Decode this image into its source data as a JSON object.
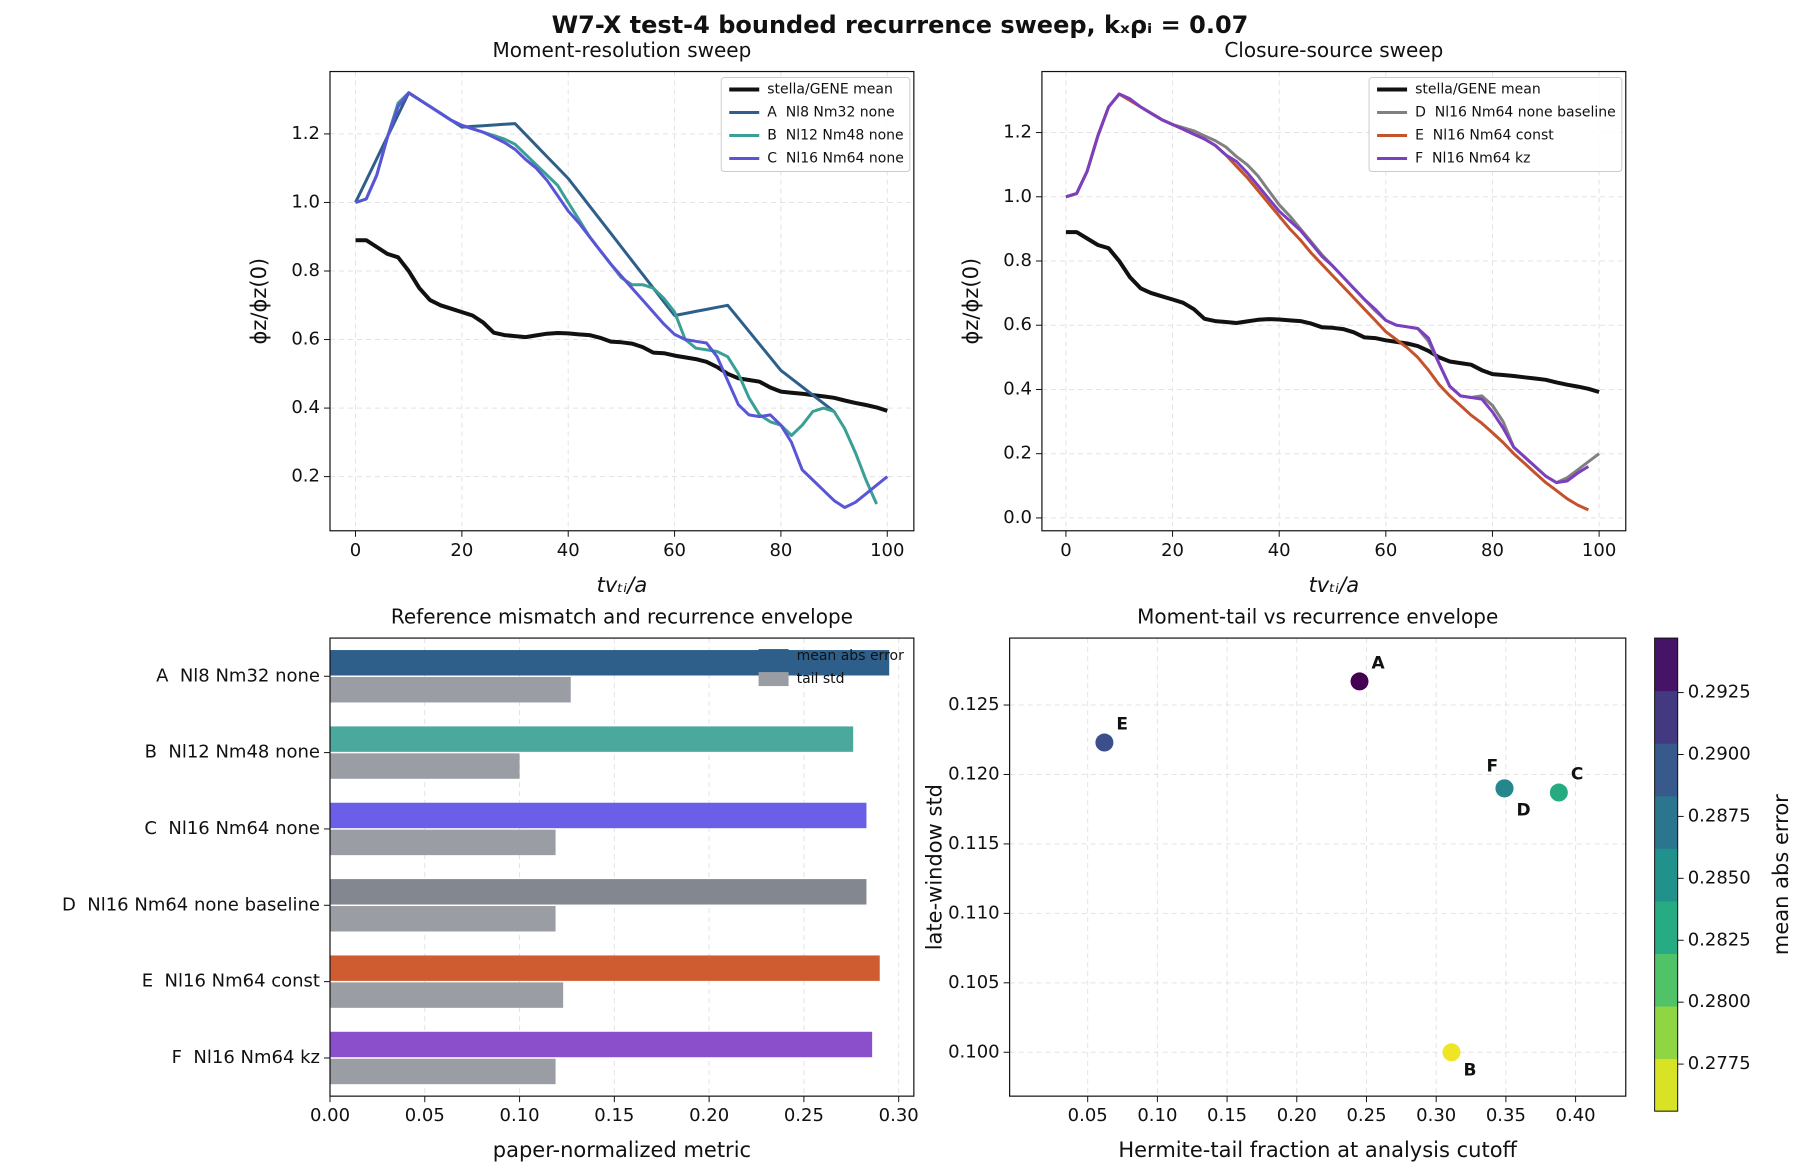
{
  "title": "W7-X test-4 bounded recurrence sweep, kₓρᵢ = 0.07",
  "chart_data": [
    {
      "type": "line",
      "title": "Moment-resolution sweep",
      "xlabel": "tvₜᵢ/a",
      "ylabel": "ϕz/ϕz(0)",
      "x": [
        0,
        2,
        4,
        6,
        8,
        10,
        12,
        14,
        16,
        18,
        20,
        22,
        24,
        26,
        28,
        30,
        32,
        34,
        36,
        38,
        40,
        42,
        44,
        46,
        48,
        50,
        52,
        54,
        56,
        58,
        60,
        62,
        64,
        66,
        68,
        70,
        72,
        74,
        76,
        78,
        80,
        82,
        84,
        86,
        88,
        90,
        92,
        94,
        96,
        98,
        100
      ],
      "series": [
        {
          "name": "stella/GENE mean",
          "color": "#111111",
          "values": [
            0.89,
            0.89,
            0.87,
            0.85,
            0.84,
            0.8,
            0.75,
            0.715,
            0.7,
            0.69,
            0.68,
            0.67,
            0.65,
            0.62,
            0.613,
            0.61,
            0.607,
            0.612,
            0.617,
            0.619,
            0.618,
            0.615,
            0.613,
            0.605,
            0.594,
            0.592,
            0.588,
            0.578,
            0.562,
            0.56,
            0.553,
            0.548,
            0.543,
            0.535,
            0.52,
            0.5,
            0.487,
            0.482,
            0.477,
            0.46,
            0.448,
            0.445,
            0.442,
            0.438,
            0.434,
            0.43,
            0.422,
            0.415,
            0.409,
            0.402,
            0.392
          ]
        },
        {
          "name": "A  Nl8 Nm32 none",
          "color": "#2d5f8a",
          "values": [
            1.0,
            1.064,
            1.128,
            1.192,
            1.256,
            1.32,
            1.3,
            1.28,
            1.26,
            1.24,
            1.22,
            1.222,
            1.224,
            1.226,
            1.228,
            1.23,
            1.198,
            1.166,
            1.134,
            1.102,
            1.07,
            1.03,
            0.99,
            0.95,
            0.91,
            0.87,
            0.83,
            0.79,
            0.75,
            0.71,
            0.67,
            0.676,
            0.682,
            0.688,
            0.694,
            0.7,
            0.662,
            0.624,
            0.586,
            0.548,
            0.51,
            0.486,
            0.462,
            0.438,
            0.414,
            0.39,
            null,
            null,
            null,
            null,
            null
          ]
        },
        {
          "name": "B  Nl12 Nm48 none",
          "color": "#3a9f94",
          "values": [
            1.0,
            1.01,
            1.08,
            1.19,
            1.29,
            1.32,
            1.3,
            1.28,
            1.26,
            1.24,
            1.225,
            1.215,
            1.205,
            1.195,
            1.185,
            1.17,
            1.14,
            1.11,
            1.08,
            1.05,
            1.0,
            0.95,
            0.9,
            0.86,
            0.82,
            0.78,
            0.76,
            0.76,
            0.75,
            0.72,
            0.68,
            0.6,
            0.575,
            0.57,
            0.565,
            0.55,
            0.5,
            0.43,
            0.38,
            0.36,
            0.35,
            0.32,
            0.35,
            0.39,
            0.4,
            0.39,
            0.34,
            0.27,
            0.19,
            0.12,
            null
          ]
        },
        {
          "name": "C  Nl16 Nm64 none",
          "color": "#5a55d6",
          "values": [
            1.0,
            1.01,
            1.08,
            1.19,
            1.28,
            1.32,
            1.3,
            1.28,
            1.26,
            1.24,
            1.225,
            1.215,
            1.205,
            1.19,
            1.175,
            1.155,
            1.125,
            1.1,
            1.065,
            1.02,
            0.975,
            0.94,
            0.9,
            0.86,
            0.82,
            0.785,
            0.75,
            0.715,
            0.68,
            0.645,
            0.615,
            0.6,
            0.595,
            0.59,
            0.55,
            0.48,
            0.41,
            0.38,
            0.375,
            0.38,
            0.35,
            0.3,
            0.22,
            0.19,
            0.16,
            0.13,
            0.11,
            0.125,
            0.15,
            0.175,
            0.2
          ]
        }
      ],
      "xlim": [
        -4.8,
        105
      ],
      "ylim": [
        0.042,
        1.382
      ],
      "xticks": [
        0,
        20,
        40,
        60,
        80,
        100
      ],
      "yticks": [
        0.2,
        0.4,
        0.6,
        0.8,
        {
          "value": 1,
          "label": "1.0"
        },
        1.2
      ],
      "grid": true,
      "legend": "upper right"
    },
    {
      "type": "line",
      "title": "Closure-source sweep",
      "xlabel": "tvₜᵢ/a",
      "ylabel": "ϕz/ϕz(0)",
      "x": [
        0,
        2,
        4,
        6,
        8,
        10,
        12,
        14,
        16,
        18,
        20,
        22,
        24,
        26,
        28,
        30,
        32,
        34,
        36,
        38,
        40,
        42,
        44,
        46,
        48,
        50,
        52,
        54,
        56,
        58,
        60,
        62,
        64,
        66,
        68,
        70,
        72,
        74,
        76,
        78,
        80,
        82,
        84,
        86,
        88,
        90,
        92,
        94,
        96,
        98,
        100
      ],
      "series": [
        {
          "name": "stella/GENE mean",
          "color": "#111111",
          "values": [
            0.89,
            0.89,
            0.87,
            0.85,
            0.84,
            0.8,
            0.75,
            0.715,
            0.7,
            0.69,
            0.68,
            0.67,
            0.65,
            0.62,
            0.613,
            0.61,
            0.607,
            0.612,
            0.617,
            0.619,
            0.618,
            0.615,
            0.613,
            0.605,
            0.594,
            0.592,
            0.588,
            0.578,
            0.562,
            0.56,
            0.553,
            0.548,
            0.543,
            0.535,
            0.52,
            0.5,
            0.487,
            0.482,
            0.477,
            0.46,
            0.448,
            0.445,
            0.442,
            0.438,
            0.434,
            0.43,
            0.422,
            0.415,
            0.409,
            0.402,
            0.392
          ]
        },
        {
          "name": "D  Nl16 Nm64 none baseline",
          "color": "#808080",
          "values": [
            1.0,
            1.01,
            1.08,
            1.19,
            1.28,
            1.32,
            1.3,
            1.28,
            1.26,
            1.24,
            1.225,
            1.215,
            1.205,
            1.19,
            1.175,
            1.155,
            1.125,
            1.1,
            1.065,
            1.02,
            0.975,
            0.94,
            0.9,
            0.86,
            0.82,
            0.785,
            0.75,
            0.715,
            0.68,
            0.645,
            0.615,
            0.6,
            0.595,
            0.59,
            0.55,
            0.48,
            0.41,
            0.38,
            0.375,
            0.38,
            0.35,
            0.3,
            0.22,
            0.19,
            0.16,
            0.13,
            0.11,
            0.125,
            0.15,
            0.175,
            0.2
          ]
        },
        {
          "name": "E  Nl16 Nm64 const",
          "color": "#c4522a",
          "values": [
            1.0,
            1.01,
            1.08,
            1.19,
            1.28,
            1.32,
            1.3,
            1.28,
            1.26,
            1.24,
            1.225,
            1.21,
            1.195,
            1.18,
            1.16,
            1.13,
            1.095,
            1.06,
            1.02,
            0.98,
            0.94,
            0.9,
            0.865,
            0.825,
            0.79,
            0.755,
            0.72,
            0.685,
            0.65,
            0.615,
            0.58,
            0.555,
            0.53,
            0.5,
            0.46,
            0.415,
            0.38,
            0.35,
            0.32,
            0.295,
            0.265,
            0.235,
            0.2,
            0.17,
            0.14,
            0.11,
            0.085,
            0.06,
            0.04,
            0.025,
            null
          ]
        },
        {
          "name": "F  Nl16 Nm64 kz",
          "color": "#7b3fbf",
          "values": [
            1.0,
            1.01,
            1.08,
            1.19,
            1.28,
            1.32,
            1.305,
            1.28,
            1.26,
            1.24,
            1.225,
            1.21,
            1.195,
            1.18,
            1.16,
            1.13,
            1.11,
            1.075,
            1.035,
            0.995,
            0.955,
            0.925,
            0.895,
            0.855,
            0.815,
            0.785,
            0.75,
            0.715,
            0.68,
            0.65,
            0.615,
            0.6,
            0.595,
            0.59,
            0.56,
            0.48,
            0.41,
            0.38,
            0.375,
            0.37,
            0.33,
            0.28,
            0.22,
            0.19,
            0.16,
            0.13,
            0.11,
            0.115,
            0.14,
            0.16,
            null
          ]
        }
      ],
      "xlim": [
        -4.5,
        105
      ],
      "ylim": [
        -0.04,
        1.39
      ],
      "xticks": [
        0,
        20,
        40,
        60,
        80,
        100
      ],
      "yticks": [
        {
          "value": 0,
          "label": "0.0"
        },
        0.2,
        0.4,
        0.6,
        0.8,
        {
          "value": 1,
          "label": "1.0"
        },
        1.2
      ],
      "grid": true,
      "legend": "upper right"
    },
    {
      "type": "bar",
      "orientation": "horizontal",
      "title": "Reference mismatch and recurrence envelope",
      "xlabel": "paper-normalized metric",
      "categories": [
        "A  Nl8 Nm32 none",
        "B  Nl12 Nm48 none",
        "C  Nl16 Nm64 none",
        "D  Nl16 Nm64 none baseline",
        "E  Nl16 Nm64 const",
        "F  Nl16 Nm64 kz"
      ],
      "series": [
        {
          "name": "mean abs error",
          "color": "#2d5f8a",
          "colors": [
            "#2d5f8a",
            "#4aa99c",
            "#6a5fe6",
            "#838890",
            "#cf5c30",
            "#8c4fcc"
          ],
          "values": [
            0.295,
            0.276,
            0.283,
            0.283,
            0.29,
            0.286
          ]
        },
        {
          "name": "tail std",
          "color": "#9a9da3",
          "values": [
            0.127,
            0.1,
            0.119,
            0.119,
            0.123,
            0.119
          ]
        }
      ],
      "xlim": [
        0,
        0.308
      ],
      "xticks": [
        {
          "value": 0,
          "label": "0.00"
        },
        0.05,
        {
          "value": 0.1,
          "label": "0.10"
        },
        0.15,
        {
          "value": 0.2,
          "label": "0.20"
        },
        0.25,
        {
          "value": 0.3,
          "label": "0.30"
        }
      ],
      "grid": true,
      "legend": "upper right"
    },
    {
      "type": "scatter",
      "title": "Moment-tail vs recurrence envelope",
      "xlabel": "Hermite-tail fraction at analysis cutoff",
      "ylabel": "late-window std",
      "labels": [
        "A",
        "B",
        "C",
        "D",
        "E",
        "F"
      ],
      "x": [
        0.245,
        0.311,
        0.388,
        0.349,
        0.062,
        0.349
      ],
      "y": [
        0.1267,
        0.1,
        0.1187,
        0.119,
        0.1223,
        0.119
      ],
      "c": [
        0.295,
        0.276,
        0.283,
        0.283,
        0.29,
        0.286
      ],
      "colormap": "viridis_r",
      "clim": [
        0.2756,
        0.2947
      ],
      "colorbar_label": "mean abs error",
      "cticks": [
        0.2775,
        {
          "value": 0.28,
          "label": "0.2800"
        },
        0.2825,
        {
          "value": 0.285,
          "label": "0.2850"
        },
        0.2875,
        {
          "value": 0.29,
          "label": "0.2900"
        },
        0.2925
      ],
      "xlim": [
        -0.006,
        0.436
      ],
      "ylim": [
        0.09684,
        0.12982
      ],
      "xticks": [
        0.05,
        {
          "value": 0.1,
          "label": "0.10"
        },
        0.15,
        {
          "value": 0.2,
          "label": "0.20"
        },
        0.25,
        {
          "value": 0.3,
          "label": "0.30"
        },
        0.35,
        {
          "value": 0.4,
          "label": "0.40"
        }
      ],
      "yticks": [
        {
          "value": 0.1,
          "label": "0.100"
        },
        0.105,
        {
          "value": 0.11,
          "label": "0.110"
        },
        0.115,
        {
          "value": 0.12,
          "label": "0.120"
        },
        0.125
      ],
      "grid": true
    }
  ]
}
